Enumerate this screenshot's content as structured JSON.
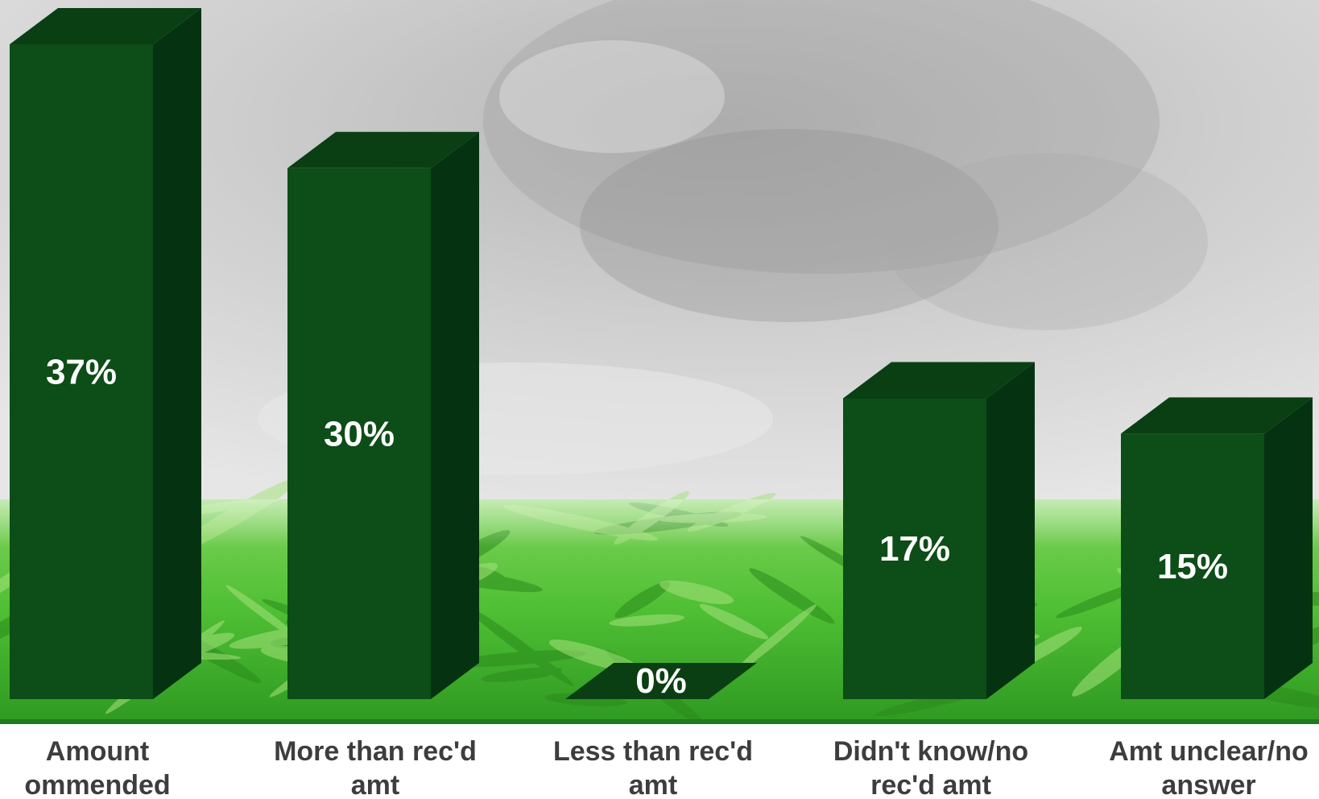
{
  "chart_data": {
    "type": "bar",
    "categories": [
      [
        "Amount",
        "ommended"
      ],
      [
        "More than rec'd",
        "amt"
      ],
      [
        "Less than rec'd",
        "amt"
      ],
      [
        "Didn't know/no",
        "rec'd amt"
      ],
      [
        "Amt unclear/no",
        "answer"
      ]
    ],
    "values": [
      37,
      30,
      0,
      17,
      15
    ],
    "value_labels": [
      "37%",
      "30%",
      "0%",
      "17%",
      "15%"
    ],
    "unit": "%",
    "ylim": [
      0,
      40
    ],
    "grid": false,
    "legend": "none",
    "style": "3d-column"
  },
  "colors": {
    "bar_front": "#0d4d17",
    "bar_side": "#053311",
    "bar_top": "#0a3f14",
    "label_text": "#3d3d3d",
    "value_text": "#ffffff",
    "photo_gray": "#c8c8c8",
    "leaf_green": "#3fae2e",
    "baseline": "#1d7a22"
  }
}
